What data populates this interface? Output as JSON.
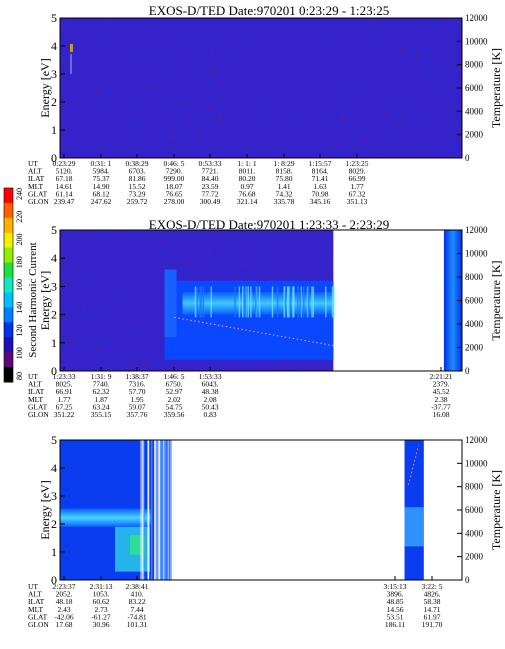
{
  "colorbar": {
    "label": "Second Harmonic Current",
    "ticks": [
      "80",
      "100",
      "120",
      "140",
      "160",
      "180",
      "200",
      "220",
      "240"
    ]
  },
  "chart_data": [
    {
      "type": "heatmap",
      "title": "EXOS-D/TED   Date:970201   0:23:29 - 1:23:25",
      "ylabel": "Energy [eV]",
      "y2label": "Temperature [K]",
      "ylim": [
        0,
        5
      ],
      "y2lim": [
        0,
        12000
      ],
      "yticks": [
        "0",
        "1",
        "2",
        "3",
        "4",
        "5"
      ],
      "y2ticks": [
        "0",
        "2000",
        "4000",
        "6000",
        "8000",
        "10000",
        "12000"
      ],
      "orbit_table": {
        "row_labels": [
          "UT",
          "ALT",
          "ILAT",
          "MLT",
          "GLAT",
          "GLON"
        ],
        "columns": [
          [
            "0:23:29",
            "5120.",
            "67.18",
            "14.61",
            "61.14",
            "239.47"
          ],
          [
            "0:31: 1",
            "5984.",
            "75.37",
            "14.90",
            "68.12",
            "247.62"
          ],
          [
            "0:38:29",
            "6703.",
            "81.86",
            "15.52",
            "73.29",
            "259.72"
          ],
          [
            "0:46: 5",
            "7290.",
            "999.00",
            "18.07",
            "76.65",
            "278.00"
          ],
          [
            "0:53:33",
            "7721.",
            "84.40",
            "23.59",
            "77.72",
            "300.49"
          ],
          [
            "1: 1: 1",
            "8011.",
            "80.20",
            "0.97",
            "76.68",
            "321.14"
          ],
          [
            "1: 8:29",
            "8158.",
            "75.80",
            "1.41",
            "74.32",
            "335.78"
          ],
          [
            "1:15:57",
            "8164.",
            "71.41",
            "1.63",
            "70.98",
            "345.16"
          ],
          [
            "1:23:25",
            "8029.",
            "66.99",
            "1.77",
            "67.32",
            "351.13"
          ]
        ]
      }
    },
    {
      "type": "heatmap",
      "title": "EXOS-D/TED   Date:970201   1:23:33 - 2:23:29",
      "ylabel": "Energy [eV]",
      "y2label": "Temperature [K]",
      "ylim": [
        0,
        5
      ],
      "y2lim": [
        0,
        12000
      ],
      "yticks": [
        "0",
        "1",
        "2",
        "3",
        "4",
        "5"
      ],
      "y2ticks": [
        "0",
        "2000",
        "4000",
        "6000",
        "8000",
        "10000",
        "12000"
      ],
      "orbit_table": {
        "row_labels": [
          "UT",
          "ALT",
          "ILAT",
          "MLT",
          "GLAT",
          "GLON"
        ],
        "columns": [
          [
            "1:23:33",
            "8025.",
            "66.91",
            "1.77",
            "67.25",
            "351.22"
          ],
          [
            "1:31: 9",
            "7740.",
            "62.32",
            "1.87",
            "63.24",
            "355.15"
          ],
          [
            "1:38:37",
            "7316.",
            "57.70",
            "1.95",
            "59.07",
            "357.76"
          ],
          [
            "1:46: 5",
            "6750.",
            "52.97",
            "2.02",
            "54.75",
            "359.56"
          ],
          [
            "1:53:33",
            "6043.",
            "48.38",
            "2.08",
            "50.43",
            "0.83"
          ],
          [
            "2:21:21",
            "2379.",
            "45.52",
            "2.38",
            "-37.77",
            "16.08"
          ]
        ]
      }
    },
    {
      "type": "heatmap",
      "title": "EXOS-D/TED   Date:970201   2:23:37 - 3:23:33",
      "ylabel": "Energy [eV]",
      "y2label": "Temperature [K]",
      "ylim": [
        0,
        5
      ],
      "y2lim": [
        0,
        12000
      ],
      "yticks": [
        "0",
        "1",
        "2",
        "3",
        "4",
        "5"
      ],
      "y2ticks": [
        "0",
        "2000",
        "4000",
        "6000",
        "8000",
        "10000",
        "12000"
      ],
      "orbit_table": {
        "row_labels": [
          "UT",
          "ALT",
          "ILAT",
          "MLT",
          "GLAT",
          "GLON"
        ],
        "columns": [
          [
            "2:23:37",
            "2052.",
            "48.18",
            "2.43",
            "-42.06",
            "17.68"
          ],
          [
            "2:31:13",
            "1053.",
            "60.62",
            "2.73",
            "-61.27",
            "30.96"
          ],
          [
            "2:38:41",
            "410.",
            "83.22",
            "7.44",
            "-74.81",
            "101.31"
          ],
          [
            "3:15:13",
            "3896.",
            "48.85",
            "14.56",
            "53.51",
            "186.11"
          ],
          [
            "3:22: 5",
            "4826.",
            "58.38",
            "14.71",
            "61.97",
            "191.70"
          ]
        ]
      }
    }
  ]
}
